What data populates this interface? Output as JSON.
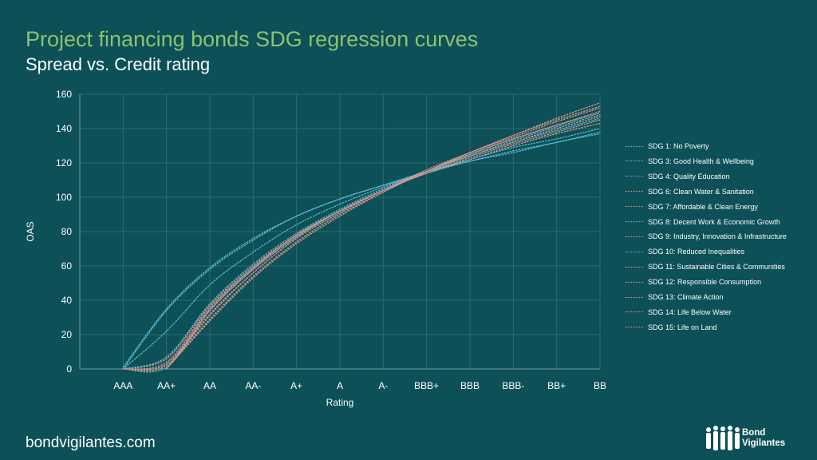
{
  "header": {
    "title": "Project financing bonds SDG regression curves",
    "subtitle": "Spread vs. Credit rating"
  },
  "footer": {
    "site": "bondvigilantes.com"
  },
  "logo": {
    "text_line1": "Bond",
    "text_line2": "Vigilantes"
  },
  "colors": {
    "background": "#0d5057",
    "title": "#8dc26f",
    "blue_series": "#5bbcd6",
    "pink_series": "#d9968c",
    "grid": "#2c6b72",
    "axis_text": "#ffffff"
  },
  "chart_data": {
    "type": "line",
    "title": "Project financing bonds SDG regression curves",
    "subtitle": "Spread vs. Credit rating",
    "xlabel": "Rating",
    "ylabel": "OAS",
    "ylim": [
      0,
      160
    ],
    "yticks": [
      0,
      20,
      40,
      60,
      80,
      100,
      120,
      140,
      160
    ],
    "categories": [
      "AAA",
      "AA+",
      "AA",
      "AA-",
      "A+",
      "A",
      "A-",
      "BBB+",
      "BBB",
      "BBB-",
      "BB+",
      "BB"
    ],
    "grid": true,
    "legend_position": "right",
    "line_style": "dotted",
    "series": [
      {
        "name": "SDG 1: No Poverty",
        "color": "blue",
        "values": [
          1,
          35,
          59,
          76,
          89,
          99,
          107,
          114,
          121,
          126,
          132,
          137
        ]
      },
      {
        "name": "SDG 3: Good Health & Wellbeing",
        "color": "blue",
        "values": [
          0,
          34,
          58,
          75,
          89,
          99,
          107,
          115,
          121,
          127,
          132,
          138
        ]
      },
      {
        "name": "SDG 4: Quality Education",
        "color": "blue",
        "values": [
          0,
          22,
          49,
          68,
          84,
          96,
          106,
          115,
          122,
          129,
          134,
          140
        ]
      },
      {
        "name": "SDG 6: Clean Water & Sanitation",
        "color": "pink",
        "values": [
          0,
          6,
          37,
          60,
          78,
          92,
          104,
          114,
          122,
          130,
          137,
          143
        ]
      },
      {
        "name": "SDG 7: Affordable & Clean Energy",
        "color": "pink",
        "values": [
          0,
          4,
          36,
          59,
          78,
          92,
          104,
          114,
          123,
          131,
          138,
          145
        ]
      },
      {
        "name": "SDG 8: Decent Work & Economic Growth",
        "color": "blue",
        "values": [
          0,
          7,
          38,
          61,
          79,
          93,
          105,
          115,
          124,
          132,
          139,
          146
        ]
      },
      {
        "name": "SDG 9: Industry, Innovation & Infrastructure",
        "color": "pink",
        "values": [
          0,
          3,
          35,
          59,
          78,
          92,
          104,
          115,
          124,
          132,
          140,
          147
        ]
      },
      {
        "name": "SDG 10: Reduced Inequalities",
        "color": "blue",
        "values": [
          0,
          1,
          34,
          58,
          77,
          92,
          104,
          115,
          124,
          133,
          141,
          148
        ]
      },
      {
        "name": "SDG 11: Sustainable Cities & Communities",
        "color": "pink",
        "values": [
          0,
          2,
          34,
          58,
          77,
          92,
          104,
          115,
          125,
          134,
          142,
          149
        ]
      },
      {
        "name": "SDG 12: Responsible Consumption",
        "color": "pink",
        "values": [
          0,
          0,
          32,
          56,
          76,
          91,
          104,
          115,
          125,
          134,
          142,
          150
        ]
      },
      {
        "name": "SDG 13: Climate Action",
        "color": "pink",
        "values": [
          0,
          0,
          31,
          56,
          76,
          91,
          104,
          116,
          126,
          135,
          144,
          152
        ]
      },
      {
        "name": "SDG 14: Life Below Water",
        "color": "pink",
        "values": [
          0,
          0,
          29,
          54,
          74,
          90,
          103,
          115,
          126,
          136,
          145,
          153
        ]
      },
      {
        "name": "SDG 15: Life on Land",
        "color": "pink",
        "values": [
          0,
          0,
          28,
          53,
          73,
          89,
          103,
          115,
          126,
          136,
          146,
          155
        ]
      }
    ]
  }
}
